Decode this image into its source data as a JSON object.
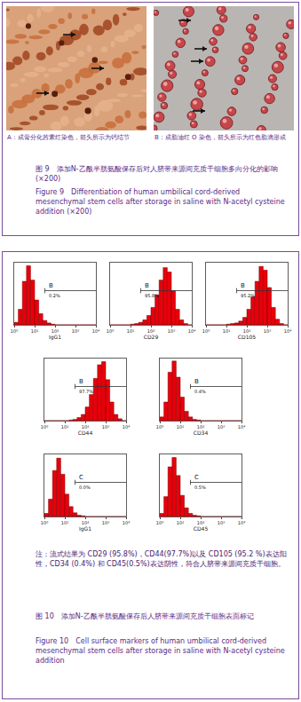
{
  "figure_9": {
    "panels": [
      {
        "caption": "A：成骨分化茜素红染色，箭头所示为钙结节"
      },
      {
        "caption": "B：成脂油红 O 染色，箭头所示为红色脂滴形成"
      }
    ],
    "caption_cn": "图 9　添加N-乙酰半胱氨酸保存后对人脐带来源间充质干细胞多向分化的影响(×200)",
    "caption_en": "Figure 9　Differentiation of human umbilical cord-derived mesenchymal stem cells after storage in saline with N-acetyl cysteine addition (×200)"
  },
  "figure_10": {
    "note": "注：流式结果为 CD29 (95.8%)，CD44(97.7%)以及 CD105 (95.2 %)表达阳性，CD34 (0.4%) 和 CD45(0.5%)表达阴性，符合人脐带来源间充质干细胞。",
    "caption_cn": "图 10　添加N-乙酰半胱氨酸保存后人脐带来源间充质干细胞表面标记",
    "caption_en": "Figure 10　Cell surface markers of human umbilical cord-derived mesenchymal stem cells after storage in saline with N-acetyl cysteine addition"
  },
  "chart_data": [
    {
      "type": "histogram",
      "x_label": "IgG1",
      "bins": [
        0,
        0.2,
        0.4,
        0.6,
        0.8,
        1,
        1.2,
        1.4,
        1.6,
        1.8,
        2,
        2.2,
        2.4,
        2.6,
        2.8,
        3,
        3.2,
        3.4,
        3.6,
        3.8,
        4
      ],
      "counts": [
        4,
        25,
        70,
        95,
        72,
        40,
        18,
        7,
        3,
        1,
        0,
        0,
        0,
        0,
        0,
        0,
        0,
        0,
        0,
        0
      ],
      "color": "#e8000b",
      "xlim": [
        0,
        4
      ],
      "xticks": [
        {
          "value": 0,
          "label": "10⁰"
        },
        {
          "value": 1,
          "label": "10¹"
        },
        {
          "value": 2,
          "label": "10²"
        },
        {
          "value": 3,
          "label": "10³"
        },
        {
          "value": 4,
          "label": "10⁴"
        }
      ],
      "ylim": [
        0,
        100
      ],
      "tick_labels": "x",
      "gate": {
        "label": "B",
        "text": "0.2%",
        "from": 1.5,
        "to": 4,
        "level": 55
      }
    },
    {
      "type": "histogram",
      "x_label": "CD29",
      "bins": [
        0,
        0.2,
        0.4,
        0.6,
        0.8,
        1,
        1.2,
        1.4,
        1.6,
        1.8,
        2,
        2.2,
        2.4,
        2.6,
        2.8,
        3,
        3.2,
        3.4,
        3.6,
        3.8,
        4
      ],
      "counts": [
        0,
        0,
        0,
        0,
        0,
        1,
        2,
        4,
        8,
        15,
        28,
        48,
        72,
        92,
        85,
        55,
        25,
        8,
        2,
        0
      ],
      "color": "#e8000b",
      "xlim": [
        0,
        4
      ],
      "xticks": [
        {
          "value": 0,
          "label": "10⁰"
        },
        {
          "value": 1,
          "label": "10¹"
        },
        {
          "value": 2,
          "label": "10²"
        },
        {
          "value": 3,
          "label": "10³"
        },
        {
          "value": 4,
          "label": "10⁴"
        }
      ],
      "ylim": [
        0,
        100
      ],
      "tick_labels": "x",
      "gate": {
        "label": "B",
        "text": "95.8%",
        "from": 1.5,
        "to": 4,
        "level": 55
      }
    },
    {
      "type": "histogram",
      "x_label": "CD105",
      "bins": [
        0,
        0.2,
        0.4,
        0.6,
        0.8,
        1,
        1.2,
        1.4,
        1.6,
        1.8,
        2,
        2.2,
        2.4,
        2.6,
        2.8,
        3,
        3.2,
        3.4,
        3.6,
        3.8,
        4
      ],
      "counts": [
        0,
        0,
        0,
        0,
        0,
        1,
        2,
        3,
        6,
        12,
        25,
        45,
        70,
        94,
        88,
        60,
        28,
        9,
        2,
        0
      ],
      "color": "#e8000b",
      "xlim": [
        0,
        4
      ],
      "xticks": [
        {
          "value": 0,
          "label": "10⁰"
        },
        {
          "value": 1,
          "label": "10¹"
        },
        {
          "value": 2,
          "label": "10²"
        },
        {
          "value": 3,
          "label": "10³"
        },
        {
          "value": 4,
          "label": "10⁴"
        }
      ],
      "ylim": [
        0,
        100
      ],
      "tick_labels": "x",
      "gate": {
        "label": "B",
        "text": "95.2%",
        "from": 1.5,
        "to": 4,
        "level": 55
      }
    },
    {
      "type": "histogram",
      "x_label": "CD44",
      "bins": [
        0,
        0.2,
        0.4,
        0.6,
        0.8,
        1,
        1.2,
        1.4,
        1.6,
        1.8,
        2,
        2.2,
        2.4,
        2.6,
        2.8,
        3,
        3.2,
        3.4,
        3.6,
        3.8,
        4
      ],
      "counts": [
        0,
        0,
        0,
        0,
        0,
        0,
        1,
        2,
        5,
        10,
        22,
        42,
        68,
        90,
        95,
        66,
        30,
        10,
        3,
        0
      ],
      "color": "#e8000b",
      "xlim": [
        0,
        4
      ],
      "xticks": [
        {
          "value": 0,
          "label": "10⁰"
        },
        {
          "value": 1,
          "label": "10¹"
        },
        {
          "value": 2,
          "label": "10²"
        },
        {
          "value": 3,
          "label": "10³"
        },
        {
          "value": 4,
          "label": "10⁴"
        }
      ],
      "ylim": [
        0,
        100
      ],
      "tick_labels": "x",
      "gate": {
        "label": "B",
        "text": "97.7%",
        "from": 1.5,
        "to": 4,
        "level": 55
      }
    },
    {
      "type": "histogram",
      "x_label": "CD34",
      "bins": [
        0,
        0.2,
        0.4,
        0.6,
        0.8,
        1,
        1.2,
        1.4,
        1.6,
        1.8,
        2,
        2.2,
        2.4,
        2.6,
        2.8,
        3,
        3.2,
        3.4,
        3.6,
        3.8,
        4
      ],
      "counts": [
        6,
        30,
        78,
        96,
        70,
        38,
        15,
        6,
        2,
        1,
        0,
        0,
        0,
        0,
        0,
        0,
        0,
        0,
        0,
        0
      ],
      "color": "#e8000b",
      "xlim": [
        0,
        4
      ],
      "xticks": [
        {
          "value": 0,
          "label": "10⁰"
        },
        {
          "value": 1,
          "label": "10¹"
        },
        {
          "value": 2,
          "label": "10²"
        },
        {
          "value": 3,
          "label": "10³"
        },
        {
          "value": 4,
          "label": "10⁴"
        }
      ],
      "ylim": [
        0,
        100
      ],
      "tick_labels": "x",
      "gate": {
        "label": "B",
        "text": "0.4%",
        "from": 1.5,
        "to": 4,
        "level": 55
      }
    },
    {
      "type": "histogram",
      "x_label": "IgG1",
      "bins": [
        0,
        0.2,
        0.4,
        0.6,
        0.8,
        1,
        1.2,
        1.4,
        1.6,
        1.8,
        2,
        2.2,
        2.4,
        2.6,
        2.8,
        3,
        3.2,
        3.4,
        3.6,
        3.8,
        4
      ],
      "counts": [
        5,
        28,
        74,
        94,
        68,
        36,
        16,
        6,
        2,
        1,
        0,
        0,
        0,
        0,
        0,
        0,
        0,
        0,
        0,
        0
      ],
      "color": "#e8000b",
      "xlim": [
        0,
        4
      ],
      "xticks": [
        {
          "value": 0,
          "label": "10⁰"
        },
        {
          "value": 1,
          "label": "10¹"
        },
        {
          "value": 2,
          "label": "10²"
        },
        {
          "value": 3,
          "label": "10³"
        },
        {
          "value": 4,
          "label": "10⁴"
        }
      ],
      "ylim": [
        0,
        100
      ],
      "tick_labels": "x",
      "gate": {
        "label": "C",
        "text": "0.0%",
        "from": 1.5,
        "to": 4,
        "level": 55
      }
    },
    {
      "type": "histogram",
      "x_label": "CD45",
      "bins": [
        0,
        0.2,
        0.4,
        0.6,
        0.8,
        1,
        1.2,
        1.4,
        1.6,
        1.8,
        2,
        2.2,
        2.4,
        2.6,
        2.8,
        3,
        3.2,
        3.4,
        3.6,
        3.8,
        4
      ],
      "counts": [
        5,
        32,
        80,
        95,
        66,
        34,
        14,
        5,
        2,
        1,
        0,
        0,
        0,
        0,
        0,
        0,
        0,
        0,
        0,
        0
      ],
      "color": "#e8000b",
      "xlim": [
        0,
        4
      ],
      "xticks": [
        {
          "value": 0,
          "label": "10⁰"
        },
        {
          "value": 1,
          "label": "10¹"
        },
        {
          "value": 2,
          "label": "10²"
        },
        {
          "value": 3,
          "label": "10³"
        },
        {
          "value": 4,
          "label": "10⁴"
        }
      ],
      "ylim": [
        0,
        100
      ],
      "tick_labels": "x",
      "gate": {
        "label": "C",
        "text": "0.5%",
        "from": 1.5,
        "to": 4,
        "level": 55
      }
    }
  ]
}
